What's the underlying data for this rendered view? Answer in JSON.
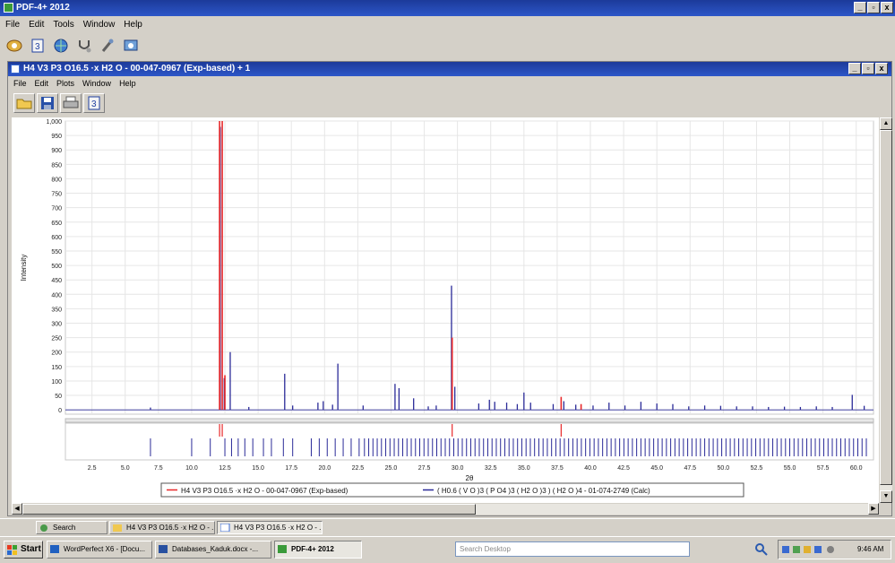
{
  "app": {
    "title": "PDF-4+ 2012",
    "menu": [
      "File",
      "Edit",
      "Tools",
      "Window",
      "Help"
    ],
    "toolbar_icons": [
      "search-db-icon",
      "clipboard-icon",
      "globe-icon",
      "stethoscope-icon",
      "pipette-icon",
      "clock-icon"
    ]
  },
  "child": {
    "title": "H4 V3 P3 O16.5 ·x H2 O - 00-047-0967 (Exp-based) + 1",
    "menu": [
      "File",
      "Edit",
      "Plots",
      "Window",
      "Help"
    ],
    "toolbar_icons": [
      "open-folder-icon",
      "save-icon",
      "print-icon",
      "clipboard-icon"
    ]
  },
  "window_controls": {
    "min": "_",
    "restore": "▫",
    "close": "x"
  },
  "colors": {
    "red_series": "#e8282a",
    "blue_series": "#2a2a98",
    "grid": "#e6e6e6"
  },
  "chart_data": {
    "type": "line",
    "xlabel": "2θ",
    "ylabel": "Intensity",
    "xlim": [
      0.5,
      61.3
    ],
    "ylim": [
      -15,
      1000
    ],
    "xticks": [
      "2.5",
      "5.0",
      "7.5",
      "10.0",
      "12.5",
      "15.0",
      "17.5",
      "20.0",
      "22.5",
      "25.0",
      "27.5",
      "30.0",
      "32.5",
      "35.0",
      "37.5",
      "40.0",
      "42.5",
      "45.0",
      "47.5",
      "50.0",
      "52.5",
      "55.0",
      "57.5",
      "60.0"
    ],
    "yticks": [
      "1,000",
      "950",
      "900",
      "850",
      "800",
      "750",
      "700",
      "650",
      "600",
      "550",
      "500",
      "450",
      "400",
      "350",
      "300",
      "250",
      "200",
      "150",
      "100",
      "50",
      "0"
    ],
    "grid": true,
    "legend_position": "bottom",
    "series": [
      {
        "name": "H4 V3 P3 O16.5 ·x H2 O - 00-047-0967 (Exp-based)",
        "peaks": [
          [
            12.1,
            1000
          ],
          [
            12.3,
            1000
          ],
          [
            12.5,
            120
          ],
          [
            29.6,
            250
          ],
          [
            37.8,
            45
          ],
          [
            39.3,
            20
          ]
        ],
        "ticks": [
          12.1,
          12.3,
          29.6,
          37.8
        ]
      },
      {
        "name": "( H0.6 ( V O )3 ( P O4 )3 ( H2 O )3 ) ( H2 O )4 - 01-074-2749 (Calc)",
        "peaks": [
          [
            6.9,
            8
          ],
          [
            12.15,
            980
          ],
          [
            12.45,
            110
          ],
          [
            12.9,
            200
          ],
          [
            14.3,
            10
          ],
          [
            17.0,
            125
          ],
          [
            17.6,
            15
          ],
          [
            19.5,
            25
          ],
          [
            19.9,
            30
          ],
          [
            20.6,
            18
          ],
          [
            21.0,
            160
          ],
          [
            22.9,
            15
          ],
          [
            25.3,
            90
          ],
          [
            25.6,
            75
          ],
          [
            26.7,
            40
          ],
          [
            27.8,
            12
          ],
          [
            28.4,
            15
          ],
          [
            29.55,
            430
          ],
          [
            29.8,
            80
          ],
          [
            31.6,
            22
          ],
          [
            32.4,
            35
          ],
          [
            32.8,
            28
          ],
          [
            33.7,
            25
          ],
          [
            34.5,
            20
          ],
          [
            35.0,
            60
          ],
          [
            35.5,
            25
          ],
          [
            37.2,
            20
          ],
          [
            38.0,
            30
          ],
          [
            38.9,
            18
          ],
          [
            40.2,
            15
          ],
          [
            41.4,
            25
          ],
          [
            42.6,
            15
          ],
          [
            43.8,
            28
          ],
          [
            45.0,
            22
          ],
          [
            46.2,
            20
          ],
          [
            47.4,
            12
          ],
          [
            48.6,
            15
          ],
          [
            49.8,
            14
          ],
          [
            51.0,
            12
          ],
          [
            52.2,
            12
          ],
          [
            53.4,
            10
          ],
          [
            54.6,
            11
          ],
          [
            55.8,
            10
          ],
          [
            57.0,
            12
          ],
          [
            58.2,
            10
          ],
          [
            59.7,
            52
          ],
          [
            60.6,
            14
          ]
        ],
        "ticks": [
          6.9,
          10.0,
          11.4,
          12.5,
          13.0,
          13.5,
          14.0,
          14.6,
          15.4,
          16.0,
          16.9,
          17.6,
          19.0,
          19.6,
          20.2,
          20.8,
          21.4,
          22.0,
          22.6
        ]
      }
    ]
  },
  "taskrow": {
    "search_label": "Search",
    "items": [
      "H4 V3 P3 O16.5 ·x H2 O - ...",
      "H4 V3 P3 O16.5 ·x H2 O - ..."
    ]
  },
  "taskbar": {
    "start": "Start",
    "items": [
      "WordPerfect X6 - [Docu...",
      "Databases_Kaduk.docx -...",
      "PDF-4+ 2012"
    ],
    "search_placeholder": "Search Desktop",
    "clock": "9:46 AM"
  }
}
